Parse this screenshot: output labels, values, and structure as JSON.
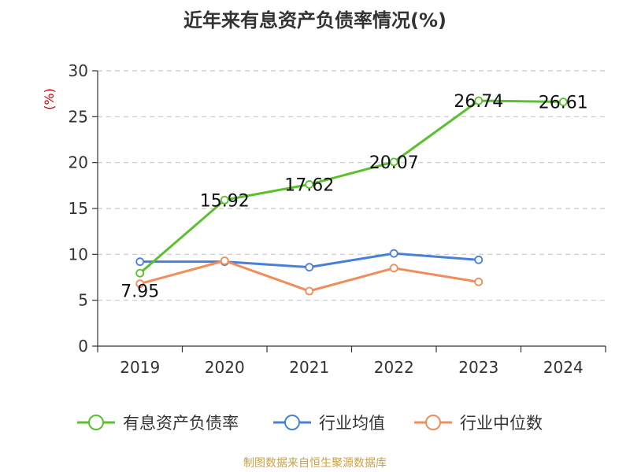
{
  "title": "近年来有息资产负债率情况(%)",
  "source": "制图数据来自恒生聚源数据库",
  "chart_data": {
    "type": "line",
    "ylabel": "(%)",
    "ylim": [
      0,
      30
    ],
    "yticks": [
      0,
      5,
      10,
      15,
      20,
      25,
      30
    ],
    "categories": [
      "2019",
      "2020",
      "2021",
      "2022",
      "2023",
      "2024"
    ],
    "grid": true,
    "legend_position": "bottom",
    "series": [
      {
        "name": "有息资产负债率",
        "color": "#58c12b",
        "values": [
          7.95,
          15.92,
          17.62,
          20.07,
          26.74,
          26.61
        ],
        "labels": [
          "7.95",
          "15.92",
          "17.62",
          "20.07",
          "26.74",
          "26.61"
        ]
      },
      {
        "name": "行业均值",
        "color": "#4a7fd9",
        "values": [
          9.2,
          9.2,
          8.6,
          10.1,
          9.4,
          null
        ]
      },
      {
        "name": "行业中位数",
        "color": "#f28c5a",
        "values": [
          6.8,
          9.3,
          6.0,
          8.5,
          7.0,
          null
        ]
      }
    ]
  }
}
